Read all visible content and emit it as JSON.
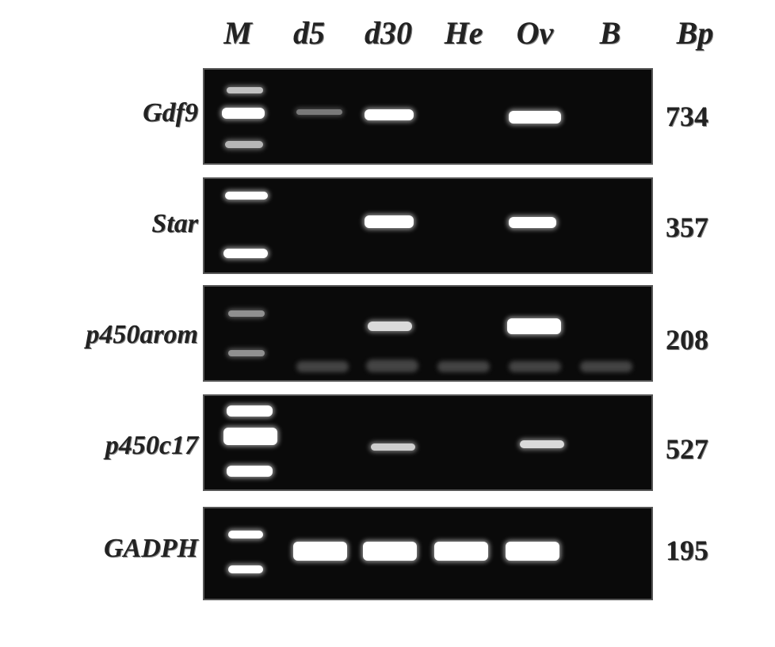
{
  "lanes": [
    "M",
    "d5",
    "d30",
    "He",
    "Ov",
    "B",
    "Bp"
  ],
  "rows": [
    {
      "gene": "Gdf9",
      "bp": "734"
    },
    {
      "gene": "Star",
      "bp": "357"
    },
    {
      "gene": "p450arom",
      "bp": "208"
    },
    {
      "gene": "p450c17",
      "bp": "527"
    },
    {
      "gene": "GADPH",
      "bp": "195"
    }
  ]
}
